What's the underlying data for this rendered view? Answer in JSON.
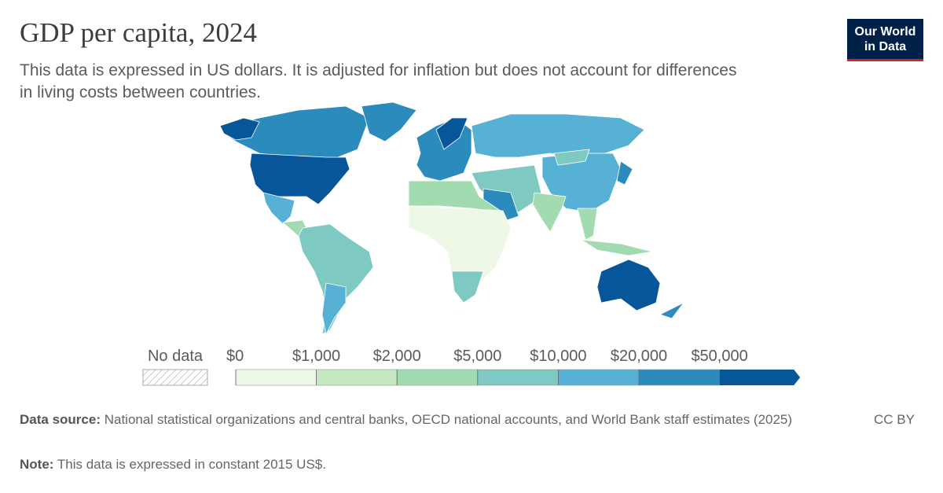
{
  "header": {
    "title": "GDP per capita, 2024",
    "subtitle": "This data is expressed in US dollars. It is adjusted for inflation but does not account for differences in living costs between countries.",
    "logo": [
      "Our World",
      "in Data"
    ]
  },
  "legend": {
    "no_data": "No data",
    "ticks": [
      {
        "value": 0,
        "label": "$0"
      },
      {
        "value": 1000,
        "label": "$1,000"
      },
      {
        "value": 2000,
        "label": "$2,000"
      },
      {
        "value": 5000,
        "label": "$5,000"
      },
      {
        "value": 10000,
        "label": "$10,000"
      },
      {
        "value": 20000,
        "label": "$20,000"
      },
      {
        "value": 50000,
        "label": "$50,000"
      }
    ],
    "colors": [
      "#edf8e6",
      "#c6e8c1",
      "#a3dbb0",
      "#7ecac3",
      "#56b1d4",
      "#2c8bbd",
      "#08569a"
    ]
  },
  "footer": {
    "source_label": "Data source:",
    "source": "National statistical organizations and central banks, OECD national accounts, and World Bank staff estimates (2025)",
    "note_label": "Note:",
    "note": "This data is expressed in constant 2015 US$.",
    "license": "CC BY"
  }
}
